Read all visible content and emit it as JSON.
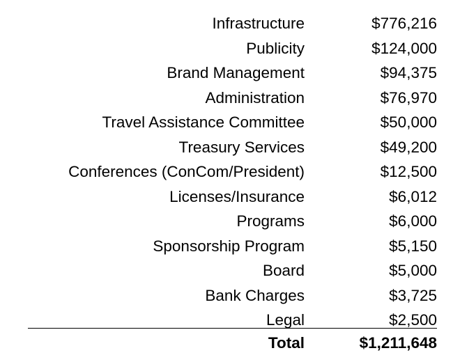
{
  "rows": [
    {
      "label": "Infrastructure",
      "amount": "$776,216"
    },
    {
      "label": "Publicity",
      "amount": "$124,000"
    },
    {
      "label": "Brand Management",
      "amount": "$94,375"
    },
    {
      "label": "Administration",
      "amount": "$76,970"
    },
    {
      "label": "Travel Assistance Committee",
      "amount": "$50,000"
    },
    {
      "label": "Treasury Services",
      "amount": "$49,200"
    },
    {
      "label": "Conferences (ConCom/President)",
      "amount": "$12,500"
    },
    {
      "label": "Licenses/Insurance",
      "amount": "$6,012"
    },
    {
      "label": "Programs",
      "amount": "$6,000"
    },
    {
      "label": "Sponsorship Program",
      "amount": "$5,150"
    },
    {
      "label": "Board",
      "amount": "$5,000"
    },
    {
      "label": "Bank Charges",
      "amount": "$3,725"
    },
    {
      "label": "Legal",
      "amount": "$2,500"
    }
  ],
  "total": {
    "label": "Total",
    "amount": "$1,211,648"
  }
}
